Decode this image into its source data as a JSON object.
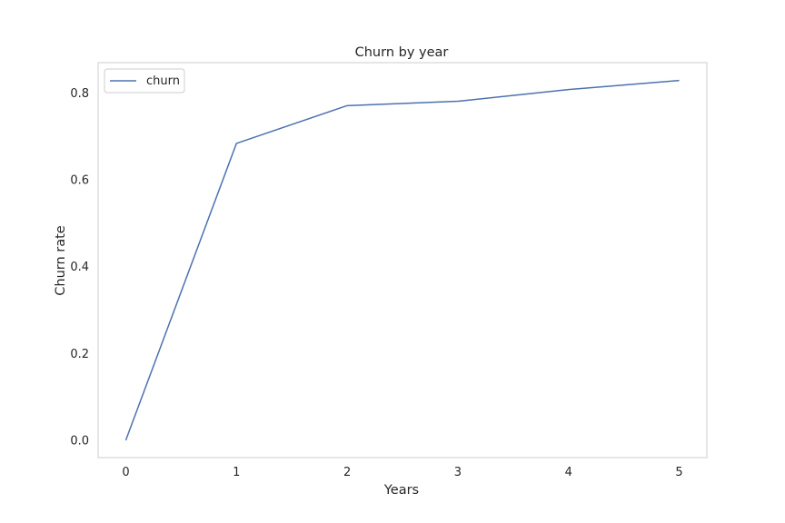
{
  "chart_data": {
    "type": "line",
    "title": "Churn by year",
    "xlabel": "Years",
    "ylabel": "Churn rate",
    "x": [
      0,
      1,
      2,
      3,
      4,
      5
    ],
    "xticks": [
      "0",
      "1",
      "2",
      "3",
      "4",
      "5"
    ],
    "yticks": [
      "0.0",
      "0.2",
      "0.4",
      "0.6",
      "0.8"
    ],
    "xlim": [
      -0.25,
      5.25
    ],
    "ylim": [
      -0.04,
      0.87
    ],
    "grid": false,
    "legend_position": "top-left",
    "series": [
      {
        "name": "churn",
        "color": "#4c72b0",
        "values": [
          0.0,
          0.684,
          0.771,
          0.781,
          0.808,
          0.829
        ]
      }
    ]
  }
}
